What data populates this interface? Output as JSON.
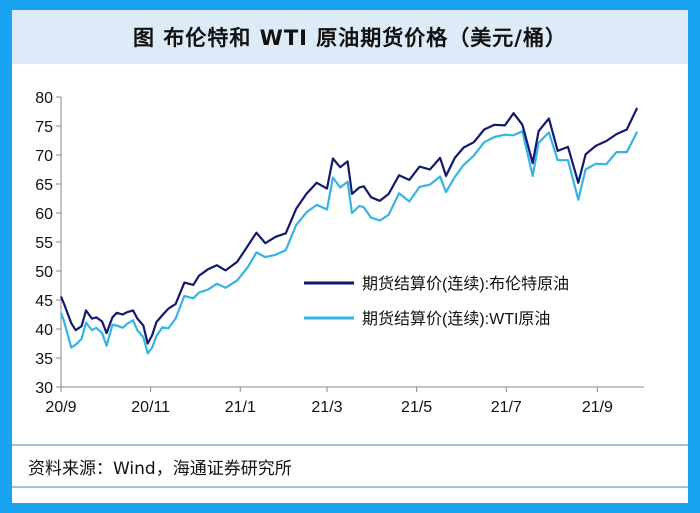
{
  "header": {
    "title": "图  布伦特和 WTI 原油期货价格（美元/桶）"
  },
  "footer": {
    "source": "资料来源：Wind，海通证券研究所"
  },
  "colors": {
    "brent": "#131a6e",
    "wti": "#35b4e3",
    "frame": "#1aa3f0",
    "title_bg": "#dcebf7"
  },
  "chart_data": {
    "type": "line",
    "title": "布伦特和 WTI 原油期货价格（美元/桶）",
    "xlabel": "",
    "ylabel": "",
    "ylim": [
      30,
      80
    ],
    "yticks": [
      30,
      35,
      40,
      45,
      50,
      55,
      60,
      65,
      70,
      75,
      80
    ],
    "xticks": [
      "20/9",
      "20/11",
      "21/1",
      "21/3",
      "21/5",
      "21/7",
      "21/9"
    ],
    "x_range": [
      "2020-09-01",
      "2021-09-30"
    ],
    "legend_position": "center-right",
    "grid": false,
    "series": [
      {
        "name": "期货结算价(连续):布伦特原油",
        "x": [
          "2020-09-01",
          "2020-09-03",
          "2020-09-08",
          "2020-09-11",
          "2020-09-15",
          "2020-09-18",
          "2020-09-22",
          "2020-09-25",
          "2020-09-29",
          "2020-10-02",
          "2020-10-06",
          "2020-10-09",
          "2020-10-13",
          "2020-10-16",
          "2020-10-20",
          "2020-10-23",
          "2020-10-27",
          "2020-10-30",
          "2020-11-02",
          "2020-11-05",
          "2020-11-09",
          "2020-11-13",
          "2020-11-18",
          "2020-11-24",
          "2020-11-30",
          "2020-12-04",
          "2020-12-10",
          "2020-12-16",
          "2020-12-22",
          "2020-12-30",
          "2021-01-06",
          "2021-01-12",
          "2021-01-18",
          "2021-01-25",
          "2021-02-01",
          "2021-02-08",
          "2021-02-15",
          "2021-02-22",
          "2021-03-01",
          "2021-03-05",
          "2021-03-10",
          "2021-03-15",
          "2021-03-18",
          "2021-03-23",
          "2021-03-26",
          "2021-03-31",
          "2021-04-06",
          "2021-04-12",
          "2021-04-19",
          "2021-04-26",
          "2021-05-03",
          "2021-05-10",
          "2021-05-17",
          "2021-05-21",
          "2021-05-27",
          "2021-06-02",
          "2021-06-09",
          "2021-06-16",
          "2021-06-23",
          "2021-06-30",
          "2021-07-06",
          "2021-07-12",
          "2021-07-19",
          "2021-07-23",
          "2021-07-30",
          "2021-08-05",
          "2021-08-12",
          "2021-08-19",
          "2021-08-24",
          "2021-08-31",
          "2021-09-07",
          "2021-09-14",
          "2021-09-21",
          "2021-09-28"
        ],
        "values": [
          45.6,
          44.4,
          41.0,
          39.8,
          40.5,
          43.2,
          41.8,
          42.0,
          41.3,
          39.3,
          42.0,
          42.8,
          42.5,
          42.9,
          43.2,
          41.8,
          40.6,
          37.5,
          38.9,
          41.2,
          42.4,
          43.5,
          44.3,
          48.0,
          47.6,
          49.2,
          50.3,
          51.0,
          50.1,
          51.6,
          54.3,
          56.6,
          54.8,
          55.9,
          56.5,
          60.7,
          63.3,
          65.2,
          64.2,
          69.4,
          67.9,
          68.9,
          63.3,
          64.4,
          64.6,
          62.7,
          62.1,
          63.3,
          66.5,
          65.7,
          68.0,
          67.5,
          69.5,
          66.4,
          69.5,
          71.3,
          72.2,
          74.4,
          75.2,
          75.1,
          77.2,
          75.2,
          68.6,
          74.1,
          76.3,
          70.7,
          71.4,
          65.2,
          70.1,
          71.6,
          72.4,
          73.6,
          74.4,
          78.1
        ]
      },
      {
        "name": "期货结算价(连续):WTI原油",
        "x": [
          "2020-09-01",
          "2020-09-03",
          "2020-09-08",
          "2020-09-11",
          "2020-09-15",
          "2020-09-18",
          "2020-09-22",
          "2020-09-25",
          "2020-09-29",
          "2020-10-02",
          "2020-10-06",
          "2020-10-09",
          "2020-10-13",
          "2020-10-16",
          "2020-10-20",
          "2020-10-23",
          "2020-10-27",
          "2020-10-30",
          "2020-11-02",
          "2020-11-05",
          "2020-11-09",
          "2020-11-13",
          "2020-11-18",
          "2020-11-24",
          "2020-11-30",
          "2020-12-04",
          "2020-12-10",
          "2020-12-16",
          "2020-12-22",
          "2020-12-30",
          "2021-01-06",
          "2021-01-12",
          "2021-01-18",
          "2021-01-25",
          "2021-02-01",
          "2021-02-08",
          "2021-02-15",
          "2021-02-22",
          "2021-03-01",
          "2021-03-05",
          "2021-03-10",
          "2021-03-15",
          "2021-03-18",
          "2021-03-23",
          "2021-03-26",
          "2021-03-31",
          "2021-04-06",
          "2021-04-12",
          "2021-04-19",
          "2021-04-26",
          "2021-05-03",
          "2021-05-10",
          "2021-05-17",
          "2021-05-21",
          "2021-05-27",
          "2021-06-02",
          "2021-06-09",
          "2021-06-16",
          "2021-06-23",
          "2021-06-30",
          "2021-07-06",
          "2021-07-12",
          "2021-07-19",
          "2021-07-23",
          "2021-07-30",
          "2021-08-05",
          "2021-08-12",
          "2021-08-19",
          "2021-08-24",
          "2021-08-31",
          "2021-09-07",
          "2021-09-14",
          "2021-09-21",
          "2021-09-28"
        ],
        "values": [
          42.8,
          41.4,
          36.8,
          37.3,
          38.3,
          41.1,
          39.8,
          40.2,
          39.3,
          37.1,
          40.7,
          40.6,
          40.2,
          40.9,
          41.5,
          39.8,
          38.6,
          35.8,
          36.8,
          38.8,
          40.3,
          40.1,
          41.8,
          45.7,
          45.3,
          46.3,
          46.8,
          47.8,
          47.1,
          48.4,
          50.6,
          53.2,
          52.4,
          52.8,
          53.6,
          57.9,
          60.1,
          61.4,
          60.6,
          66.1,
          64.4,
          65.4,
          60.0,
          61.2,
          61.0,
          59.2,
          58.7,
          59.7,
          63.4,
          62.0,
          64.5,
          64.9,
          66.3,
          63.6,
          66.2,
          68.3,
          69.9,
          72.2,
          73.1,
          73.5,
          73.4,
          74.1,
          66.4,
          72.1,
          73.9,
          69.1,
          69.1,
          62.3,
          67.5,
          68.5,
          68.4,
          70.5,
          70.5,
          74.0
        ]
      }
    ]
  }
}
